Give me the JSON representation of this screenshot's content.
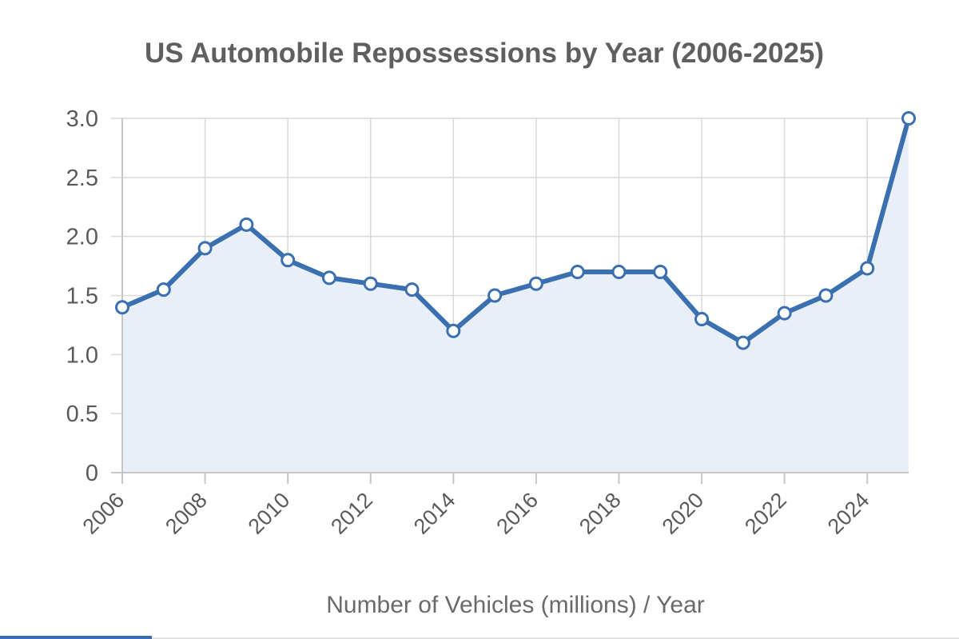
{
  "chart_data": {
    "type": "area",
    "title": "US Automobile Repossessions by Year (2006-2025)",
    "xlabel": "Number of Vehicles (millions) / Year",
    "ylabel": "",
    "x": [
      2006,
      2007,
      2008,
      2009,
      2010,
      2011,
      2012,
      2013,
      2014,
      2015,
      2016,
      2017,
      2018,
      2019,
      2020,
      2021,
      2022,
      2023,
      2024,
      2025
    ],
    "series": [
      {
        "values": [
          1.4,
          1.55,
          1.9,
          2.1,
          1.8,
          1.65,
          1.6,
          1.55,
          1.2,
          1.5,
          1.6,
          1.7,
          1.7,
          1.7,
          1.3,
          1.1,
          1.35,
          1.5,
          1.73,
          3.0
        ]
      }
    ],
    "xlim": [
      2006,
      2025
    ],
    "ylim": [
      0,
      3.0
    ],
    "y_ticks": [
      0,
      0.5,
      1.0,
      1.5,
      2.0,
      2.5,
      3.0
    ],
    "y_tick_labels": [
      "0",
      "0.5",
      "1.0",
      "1.5",
      "2.0",
      "2.5",
      "3.0"
    ],
    "x_ticks": [
      2006,
      2008,
      2010,
      2012,
      2014,
      2016,
      2018,
      2020,
      2022,
      2024
    ],
    "x_tick_labels": [
      "2006",
      "2008",
      "2010",
      "2012",
      "2014",
      "2016",
      "2018",
      "2020",
      "2022",
      "2024"
    ],
    "grid": true,
    "legend": "none",
    "colors": {
      "line": "#3a6fb0",
      "fill": "#e8eff8",
      "point_fill": "#ffffff"
    }
  }
}
